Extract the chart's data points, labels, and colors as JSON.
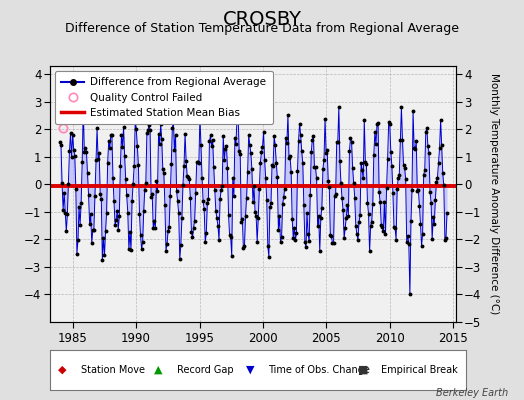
{
  "title": "CROSBY",
  "subtitle": "Difference of Station Temperature Data from Regional Average",
  "ylabel": "Monthly Temperature Anomaly Difference (°C)",
  "xlim": [
    1983.2,
    2015.2
  ],
  "ylim": [
    -5,
    4.3
  ],
  "yticks_left": [
    -4,
    -3,
    -2,
    -1,
    0,
    1,
    2,
    3,
    4
  ],
  "yticks_right": [
    -5,
    -4,
    -3,
    -2,
    -1,
    0,
    1,
    2,
    3,
    4
  ],
  "xticks": [
    1985,
    1990,
    1995,
    2000,
    2005,
    2010,
    2015
  ],
  "mean_bias": -0.05,
  "bias_color": "#dd0000",
  "line_color": "#0000cc",
  "fill_color": "#aaaaff",
  "dot_color": "#000000",
  "qc_color": "#ff88bb",
  "background_color": "#e0e0e0",
  "plot_bg_color": "#f0f0f0",
  "seed": 12345,
  "watermark": "Berkeley Earth",
  "title_fontsize": 14,
  "subtitle_fontsize": 9
}
